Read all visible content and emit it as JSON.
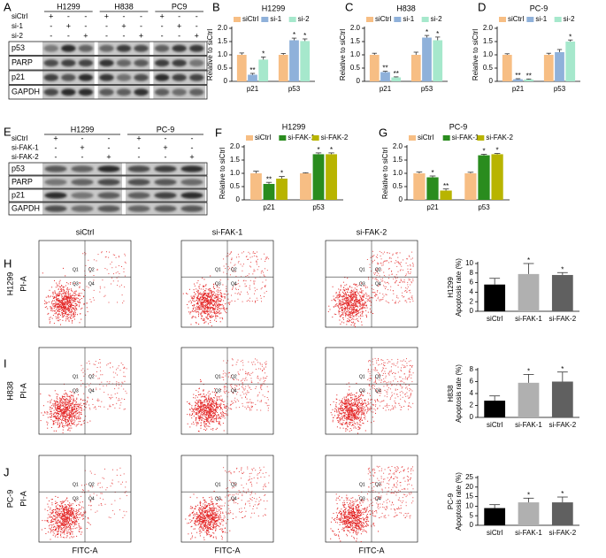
{
  "chart_data": [
    {
      "type": "bar",
      "panel": "B",
      "title": "H1299",
      "ylabel": "Relative to siCtrl",
      "categories": [
        "p21",
        "p53"
      ],
      "ylim": [
        0,
        2
      ],
      "yticks": [
        0,
        0.5,
        {
          "value": 1,
          "label": "1.0"
        },
        1.5,
        {
          "value": 2,
          "label": "2.0"
        }
      ],
      "series": [
        {
          "name": "siCtrl",
          "color": "#f7be84",
          "values": [
            1,
            1
          ],
          "errors": [
            0.07,
            0.05
          ]
        },
        {
          "name": "si-1",
          "color": "#8fb1da",
          "values": [
            0.25,
            1.55
          ],
          "errors": [
            0.05,
            0.08
          ],
          "stars": [
            "**",
            "*"
          ]
        },
        {
          "name": "si-2",
          "color": "#a6e8cc",
          "values": [
            0.82,
            1.52
          ],
          "errors": [
            0.1,
            0.08
          ],
          "stars": [
            "*",
            "*"
          ]
        }
      ]
    },
    {
      "type": "bar",
      "panel": "C",
      "title": "H838",
      "ylabel": "Relative to siCtrl",
      "categories": [
        "p21",
        "p53"
      ],
      "ylim": [
        0,
        2
      ],
      "yticks": [
        0,
        0.5,
        {
          "value": 1,
          "label": "1.0"
        },
        1.5,
        {
          "value": 2,
          "label": "2.0"
        }
      ],
      "series": [
        {
          "name": "siCtrl",
          "color": "#f7be84",
          "values": [
            1,
            1
          ],
          "errors": [
            0.06,
            0.1
          ]
        },
        {
          "name": "si-1",
          "color": "#8fb1da",
          "values": [
            0.35,
            1.65
          ],
          "errors": [
            0.03,
            0.08
          ],
          "stars": [
            "**",
            "*"
          ]
        },
        {
          "name": "si-2",
          "color": "#a6e8cc",
          "values": [
            0.15,
            1.55
          ],
          "errors": [
            0.02,
            0.12
          ],
          "stars": [
            "**",
            "*"
          ]
        }
      ]
    },
    {
      "type": "bar",
      "panel": "D",
      "title": "PC-9",
      "ylabel": "Relative to siCtrl",
      "categories": [
        "p21",
        "p53"
      ],
      "ylim": [
        0,
        2
      ],
      "yticks": [
        0,
        0.5,
        {
          "value": 1,
          "label": "1.0"
        },
        1.5,
        {
          "value": 2,
          "label": "2.0"
        }
      ],
      "series": [
        {
          "name": "siCtrl",
          "color": "#f7be84",
          "values": [
            1,
            1
          ],
          "errors": [
            0.04,
            0.06
          ]
        },
        {
          "name": "si-1",
          "color": "#8fb1da",
          "values": [
            0.08,
            1.1
          ],
          "errors": [
            0.02,
            0.1
          ],
          "stars": [
            "**",
            null
          ]
        },
        {
          "name": "si-2",
          "color": "#a6e8cc",
          "values": [
            0.07,
            1.5
          ],
          "errors": [
            0.02,
            0.06
          ],
          "stars": [
            "**",
            "*"
          ]
        }
      ]
    },
    {
      "type": "bar",
      "panel": "F",
      "title": "H1299",
      "ylabel": "Relative to siCtrl",
      "categories": [
        "p21",
        "p53"
      ],
      "ylim": [
        0,
        2
      ],
      "yticks": [
        0,
        0.5,
        {
          "value": 1,
          "label": "1.0"
        },
        1.5,
        {
          "value": 2,
          "label": "2.0"
        }
      ],
      "series": [
        {
          "name": "siCtrl",
          "color": "#f7be84",
          "values": [
            1,
            1
          ],
          "errors": [
            0.08,
            0.02
          ]
        },
        {
          "name": "si-FAK-1",
          "color": "#2a8c1e",
          "values": [
            0.6,
            1.72
          ],
          "errors": [
            0.06,
            0.05
          ],
          "stars": [
            "**",
            "*"
          ]
        },
        {
          "name": "si-FAK-2",
          "color": "#b8b400",
          "values": [
            0.8,
            1.72
          ],
          "errors": [
            0.08,
            0.05
          ],
          "stars": [
            "*",
            "*"
          ]
        }
      ]
    },
    {
      "type": "bar",
      "panel": "G",
      "title": "PC-9",
      "ylabel": "Relative to siCtrl",
      "categories": [
        "p21",
        "p53"
      ],
      "ylim": [
        0,
        2
      ],
      "yticks": [
        0,
        0.5,
        {
          "value": 1,
          "label": "1.0"
        },
        1.5,
        {
          "value": 2,
          "label": "2.0"
        }
      ],
      "series": [
        {
          "name": "siCtrl",
          "color": "#f7be84",
          "values": [
            1,
            1
          ],
          "errors": [
            0.05,
            0.04
          ]
        },
        {
          "name": "si-FAK-1",
          "color": "#2a8c1e",
          "values": [
            0.85,
            1.68
          ],
          "errors": [
            0.05,
            0.04
          ],
          "stars": [
            "*",
            "*"
          ]
        },
        {
          "name": "si-FAK-2",
          "color": "#b8b400",
          "values": [
            0.35,
            1.72
          ],
          "errors": [
            0.06,
            0.03
          ],
          "stars": [
            "**",
            "*"
          ]
        }
      ]
    },
    {
      "type": "bar",
      "panel": "H",
      "ylabel": [
        "H1299",
        "Apoptosis rate (%)"
      ],
      "categories": [
        "siCtrl",
        "si-FAK-1",
        "si-FAK-2"
      ],
      "values": [
        5.6,
        7.8,
        7.6
      ],
      "errors": [
        1.3,
        2.2,
        0.5
      ],
      "colors": [
        "#000000",
        "#b0b0b0",
        "#606060"
      ],
      "stars": [
        null,
        "*",
        "*"
      ],
      "ylim": [
        0,
        10
      ],
      "yticks": [
        0,
        2,
        4,
        6,
        8,
        10
      ]
    },
    {
      "type": "bar",
      "panel": "I",
      "ylabel": [
        "H838",
        "Apoptosis rate (%)"
      ],
      "categories": [
        "siCtrl",
        "si-FAK-1",
        "si-FAK-2"
      ],
      "values": [
        2.8,
        5.8,
        6.0
      ],
      "errors": [
        0.8,
        1.4,
        1.6
      ],
      "colors": [
        "#000000",
        "#b0b0b0",
        "#606060"
      ],
      "stars": [
        null,
        "*",
        "*"
      ],
      "ylim": [
        0,
        8
      ],
      "yticks": [
        0,
        2,
        4,
        6,
        8
      ]
    },
    {
      "type": "bar",
      "panel": "J",
      "ylabel": [
        "PC-9",
        "Apoptosis rate (%)"
      ],
      "categories": [
        "siCtrl",
        "si-FAK-1",
        "si-FAK-2"
      ],
      "values": [
        9,
        12,
        12
      ],
      "errors": [
        1.8,
        2.2,
        2.8
      ],
      "colors": [
        "#000000",
        "#b0b0b0",
        "#606060"
      ],
      "stars": [
        null,
        "*",
        "*"
      ],
      "ylim": [
        0,
        25
      ],
      "yticks": [
        0,
        5,
        10,
        15,
        20,
        25
      ]
    }
  ],
  "blots": [
    {
      "panel": "A",
      "groups": [
        "H1299",
        "H838",
        "PC9"
      ],
      "treatments": [
        {
          "label": "siCtrl",
          "signs": [
            "+",
            "-",
            "-",
            "+",
            "-",
            "-",
            "+",
            "-",
            "-"
          ]
        },
        {
          "label": "si-1",
          "signs": [
            "-",
            "+",
            "-",
            "-",
            "+",
            "-",
            "-",
            "+",
            "-"
          ]
        },
        {
          "label": "si-2",
          "signs": [
            "-",
            "-",
            "+",
            "-",
            "-",
            "+",
            "-",
            "-",
            "+"
          ]
        }
      ],
      "bands": [
        "p53",
        "PARP",
        "p21",
        "GAPDH"
      ]
    },
    {
      "panel": "E",
      "groups": [
        "H1299",
        "PC-9"
      ],
      "treatments": [
        {
          "label": "siCtrl",
          "signs": [
            "+",
            "-",
            "-",
            "+",
            "-",
            "-"
          ]
        },
        {
          "label": "si-FAK-1",
          "signs": [
            "-",
            "+",
            "-",
            "-",
            "+",
            "-"
          ]
        },
        {
          "label": "si-FAK-2",
          "signs": [
            "-",
            "-",
            "+",
            "-",
            "-",
            "+"
          ]
        }
      ],
      "bands": [
        "p53",
        "PARP",
        "p21",
        "GAPDH"
      ]
    }
  ],
  "flow": {
    "columns": [
      "siCtrl",
      "si-FAK-1",
      "si-FAK-2"
    ],
    "rows": [
      "H1299",
      "H838",
      "PC-9"
    ],
    "y_label": "PI-A",
    "x_label": "FITC-A",
    "quadrants": [
      "Q1",
      "Q2",
      "Q3",
      "Q4"
    ]
  }
}
